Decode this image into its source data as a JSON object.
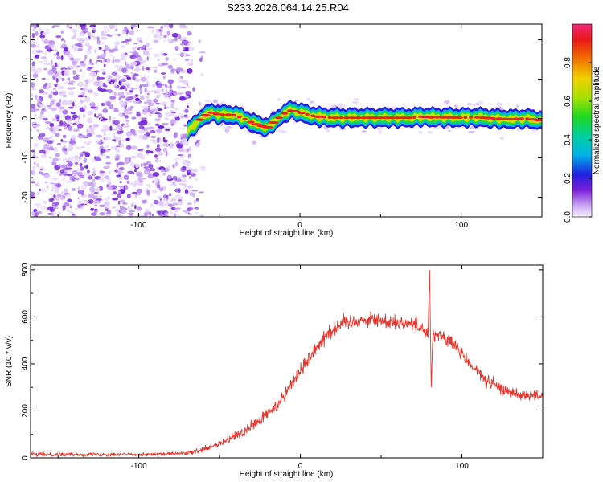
{
  "title": "S233.2026.064.14.25.R04",
  "colors": {
    "snr_line": "#e8352c",
    "speckle": "#8a2be2",
    "track_core": "#e8202a"
  },
  "chart_data": [
    {
      "type": "heatmap",
      "title": "",
      "xlabel": "Height of straight line (km)",
      "ylabel": "Frequency (Hz)",
      "xlim": [
        -167,
        150
      ],
      "ylim": [
        -25,
        24
      ],
      "xticks": [
        {
          "value": -100,
          "label": "-100"
        },
        {
          "value": 0,
          "label": "0"
        },
        {
          "value": 100,
          "label": "100"
        }
      ],
      "yticks": [
        {
          "value": 20,
          "label": "20"
        },
        {
          "value": 10,
          "label": "10"
        },
        {
          "value": 0,
          "label": "0"
        },
        {
          "value": -10,
          "label": "-10"
        },
        {
          "value": -20,
          "label": "-20"
        }
      ],
      "noise_region_x": [
        -167,
        -68
      ],
      "ridge": {
        "x": [
          -70,
          -65,
          -60,
          -55,
          -50,
          -45,
          -40,
          -35,
          -30,
          -25,
          -20,
          -15,
          -10,
          -5,
          0,
          10,
          20,
          30,
          40,
          50,
          60,
          70,
          75,
          80,
          90,
          100,
          110,
          120,
          130,
          140,
          150
        ],
        "y": [
          -3.5,
          -1.5,
          0.5,
          1.5,
          1.0,
          1.0,
          0.8,
          0.0,
          -1.0,
          -1.8,
          -2.2,
          -0.5,
          1.2,
          2.2,
          1.5,
          0.5,
          0.2,
          0.2,
          0.2,
          0.2,
          0.2,
          0.2,
          0.5,
          0.3,
          0.3,
          0.2,
          0.3,
          0.0,
          -0.2,
          0.0,
          -0.5
        ]
      },
      "colorbar": {
        "label": "Normalized spectral amplitude",
        "range": [
          0,
          1
        ],
        "ticks": [
          {
            "value": 0.0,
            "label": "0.0"
          },
          {
            "value": 0.2,
            "label": "0.2"
          },
          {
            "value": 0.4,
            "label": "0.4"
          },
          {
            "value": 0.6,
            "label": "0.6"
          },
          {
            "value": 0.8,
            "label": "0.8"
          }
        ]
      }
    },
    {
      "type": "line",
      "title": "",
      "xlabel": "Height of straight line (km)",
      "ylabel": "SNR (10 * v/v)",
      "xlim": [
        -167,
        150
      ],
      "ylim": [
        0,
        820
      ],
      "xticks": [
        {
          "value": -100,
          "label": "-100"
        },
        {
          "value": 0,
          "label": "0"
        },
        {
          "value": 100,
          "label": "100"
        }
      ],
      "yticks": [
        {
          "value": 0,
          "label": "0"
        },
        {
          "value": 200,
          "label": "200"
        },
        {
          "value": 400,
          "label": "400"
        },
        {
          "value": 600,
          "label": "600"
        },
        {
          "value": 800,
          "label": "800"
        }
      ],
      "series": [
        {
          "name": "",
          "x": [
            -167,
            -150,
            -130,
            -110,
            -90,
            -75,
            -65,
            -55,
            -45,
            -35,
            -25,
            -15,
            -5,
            5,
            15,
            25,
            35,
            45,
            55,
            65,
            75,
            79,
            80,
            81,
            82,
            85,
            95,
            105,
            115,
            125,
            135,
            150
          ],
          "y": [
            15,
            15,
            15,
            15,
            15,
            18,
            25,
            45,
            75,
            110,
            160,
            220,
            320,
            420,
            520,
            570,
            585,
            590,
            580,
            575,
            560,
            520,
            800,
            300,
            520,
            530,
            480,
            400,
            330,
            290,
            270,
            265
          ],
          "noise": [
            8,
            8,
            7,
            7,
            7,
            7,
            10,
            14,
            18,
            22,
            26,
            28,
            30,
            32,
            34,
            34,
            32,
            30,
            30,
            30,
            30,
            30,
            0,
            0,
            30,
            30,
            30,
            28,
            26,
            24,
            22,
            22
          ]
        }
      ]
    }
  ]
}
